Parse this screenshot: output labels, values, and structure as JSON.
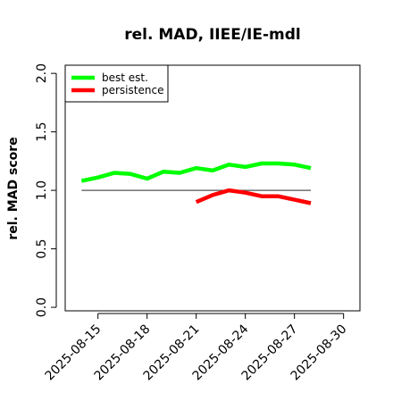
{
  "chart_data": {
    "type": "line",
    "title": "rel. MAD, IIEE/IE-mdl",
    "xlabel": "",
    "ylabel": "rel. MAD score",
    "xlim": [
      "2025-08-13",
      "2025-08-31"
    ],
    "ylim": [
      -0.03,
      2.07
    ],
    "x_ticks": [
      "2025-08-15",
      "2025-08-18",
      "2025-08-21",
      "2025-08-24",
      "2025-08-27",
      "2025-08-30"
    ],
    "y_ticks": [
      "0.0",
      "0.5",
      "1.0",
      "1.5",
      "2.0"
    ],
    "grid": false,
    "legend_position": "top-left",
    "reference_line": {
      "y": 1.0,
      "from": "2025-08-14",
      "to": "2025-08-28",
      "color": "#555555"
    },
    "series": [
      {
        "name": "best est.",
        "color": "#00ff00",
        "x": [
          "2025-08-14",
          "2025-08-15",
          "2025-08-16",
          "2025-08-17",
          "2025-08-18",
          "2025-08-19",
          "2025-08-20",
          "2025-08-21",
          "2025-08-22",
          "2025-08-23",
          "2025-08-24",
          "2025-08-25",
          "2025-08-26",
          "2025-08-27",
          "2025-08-28"
        ],
        "values": [
          1.08,
          1.11,
          1.15,
          1.14,
          1.1,
          1.16,
          1.15,
          1.19,
          1.17,
          1.22,
          1.2,
          1.23,
          1.23,
          1.22,
          1.19
        ]
      },
      {
        "name": "persistence",
        "color": "#ff0000",
        "x": [
          "2025-08-21",
          "2025-08-22",
          "2025-08-23",
          "2025-08-24",
          "2025-08-25",
          "2025-08-26",
          "2025-08-27",
          "2025-08-28"
        ],
        "values": [
          0.9,
          0.96,
          1.0,
          0.98,
          0.95,
          0.95,
          0.92,
          0.89
        ]
      }
    ]
  }
}
